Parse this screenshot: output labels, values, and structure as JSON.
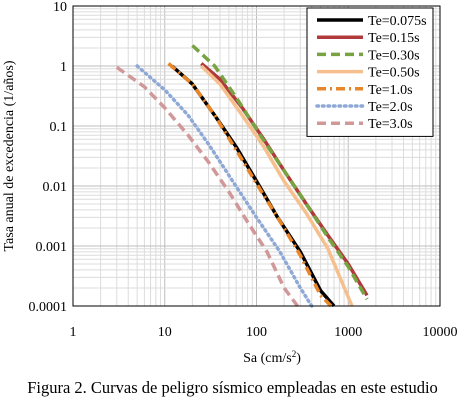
{
  "chart_data": {
    "type": "line",
    "title": "",
    "xlabel": "Sa (cm/s²)",
    "xlabel_base": "Sa (cm/s",
    "xlabel_sup": "2",
    "xlabel_tail": ")",
    "ylabel": "Tasa anual de excedencia (1/años)",
    "xscale": "log",
    "yscale": "log",
    "xlim": [
      1,
      10000
    ],
    "ylim": [
      0.0001,
      10
    ],
    "x_ticks": [
      "1",
      "10",
      "100",
      "1000",
      "10000"
    ],
    "y_ticks": [
      "10",
      "1",
      "0.1",
      "0.01",
      "0.001",
      "0.0001"
    ],
    "grid": true,
    "legend_position": "top-right",
    "series": [
      {
        "name": "Te=0.075s",
        "color": "#000000",
        "style": "solid",
        "x": [
          12,
          20,
          35,
          60,
          100,
          170,
          300,
          500,
          700
        ],
        "y": [
          1.0,
          0.5,
          0.15,
          0.045,
          0.012,
          0.003,
          0.0008,
          0.00018,
          0.0001
        ]
      },
      {
        "name": "Te=0.15s",
        "color": "#b0393b",
        "style": "solid",
        "x": [
          25,
          40,
          70,
          120,
          200,
          350,
          600,
          1000,
          1600
        ],
        "y": [
          1.1,
          0.6,
          0.2,
          0.06,
          0.018,
          0.005,
          0.0015,
          0.0005,
          0.00015
        ]
      },
      {
        "name": "Te=0.30s",
        "color": "#77a343",
        "style": "dash",
        "x": [
          20,
          35,
          60,
          110,
          200,
          350,
          600,
          1000,
          1600
        ],
        "y": [
          2.2,
          1.0,
          0.3,
          0.07,
          0.018,
          0.005,
          0.0014,
          0.00045,
          0.00013
        ]
      },
      {
        "name": "Te=0.50s",
        "color": "#f6c08e",
        "style": "solid",
        "x": [
          25,
          40,
          70,
          120,
          200,
          350,
          600,
          1100
        ],
        "y": [
          1.0,
          0.5,
          0.15,
          0.045,
          0.012,
          0.0035,
          0.0009,
          0.0001
        ]
      },
      {
        "name": "Te=1.0s",
        "color": "#e8862a",
        "style": "dashdot",
        "x": [
          11,
          20,
          35,
          60,
          100,
          170,
          300,
          500,
          650
        ],
        "y": [
          1.1,
          0.5,
          0.15,
          0.04,
          0.011,
          0.003,
          0.0007,
          0.00015,
          0.0001
        ]
      },
      {
        "name": "Te=2.0s",
        "color": "#8fa9d6",
        "style": "dot",
        "x": [
          5,
          10,
          18,
          30,
          55,
          100,
          180,
          300,
          400
        ],
        "y": [
          1.0,
          0.4,
          0.15,
          0.05,
          0.012,
          0.003,
          0.0008,
          0.0002,
          0.0001
        ]
      },
      {
        "name": "Te=3.0s",
        "color": "#d09898",
        "style": "dash",
        "x": [
          3,
          6,
          10,
          18,
          30,
          50,
          80,
          130,
          200,
          280
        ],
        "y": [
          0.95,
          0.45,
          0.2,
          0.07,
          0.025,
          0.008,
          0.0025,
          0.0008,
          0.0002,
          0.0001
        ]
      }
    ]
  },
  "caption": "Figura 2. Curvas de peligro sísmico empleadas en este estudio"
}
